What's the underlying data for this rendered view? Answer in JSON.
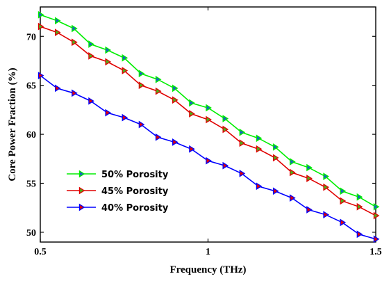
{
  "chart_data": {
    "type": "line",
    "title": "",
    "xlabel": "Frequency (THz)",
    "ylabel": "Core Power Fraction (%)",
    "xlim": [
      0.5,
      1.5
    ],
    "ylim": [
      49,
      73
    ],
    "xticks": [
      0.5,
      1,
      1.5
    ],
    "xtick_labels": [
      "0.5",
      "1",
      "1.5"
    ],
    "yticks": [
      50,
      55,
      60,
      65,
      70
    ],
    "ytick_labels": [
      "50",
      "55",
      "60",
      "65",
      "70"
    ],
    "grid": false,
    "legend_position": "bottom-left",
    "x": [
      0.5,
      0.55,
      0.6,
      0.65,
      0.7,
      0.75,
      0.8,
      0.85,
      0.9,
      0.95,
      1.0,
      1.05,
      1.1,
      1.15,
      1.2,
      1.25,
      1.3,
      1.35,
      1.4,
      1.45,
      1.5
    ],
    "series": [
      {
        "name": "50% Porosity",
        "color": "#00ee00",
        "marker_fill": "#1565c0",
        "values": [
          72.2,
          71.6,
          70.8,
          69.2,
          68.6,
          67.8,
          66.2,
          65.6,
          64.7,
          63.2,
          62.7,
          61.6,
          60.2,
          59.6,
          58.7,
          57.2,
          56.6,
          55.7,
          54.2,
          53.6,
          52.6
        ]
      },
      {
        "name": "45% Porosity",
        "color": "#e00000",
        "marker_fill": "#4caf1a",
        "values": [
          71.0,
          70.4,
          69.4,
          68.0,
          67.4,
          66.5,
          65.0,
          64.4,
          63.5,
          62.1,
          61.5,
          60.5,
          59.1,
          58.5,
          57.6,
          56.1,
          55.5,
          54.6,
          53.2,
          52.6,
          51.7
        ]
      },
      {
        "name": "40% Porosity",
        "color": "#0000ff",
        "marker_fill": "#e00000",
        "values": [
          66.0,
          64.7,
          64.2,
          63.4,
          62.2,
          61.7,
          61.0,
          59.7,
          59.2,
          58.5,
          57.3,
          56.8,
          56.0,
          54.7,
          54.2,
          53.5,
          52.3,
          51.8,
          51.0,
          49.8,
          49.3
        ]
      }
    ]
  }
}
